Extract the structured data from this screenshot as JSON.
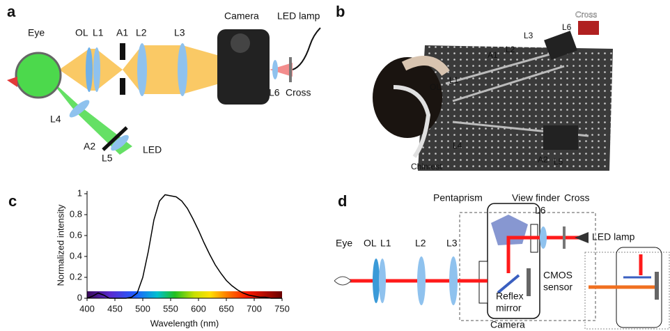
{
  "panel_a": {
    "label": "a",
    "eye": "Eye",
    "ol": "OL",
    "l1": "L1",
    "a1": "A1",
    "l2": "L2",
    "l3": "L3",
    "camera": "Camera",
    "led_lamp": "LED lamp",
    "l6": "L6",
    "cross": "Cross",
    "l4": "L4",
    "a2": "A2",
    "l5": "L5",
    "led": "LED"
  },
  "panel_b": {
    "label": "b",
    "cross": "Cross",
    "l3": "L3",
    "l6": "L6",
    "a1": "A1",
    "l2": "L2",
    "l1": "L1",
    "ol": "OL",
    "l4": "L4",
    "chinrest": "Chinrest",
    "a2": "A2",
    "l5": "L5"
  },
  "panel_c": {
    "label": "c"
  },
  "chart_data": {
    "type": "line",
    "ylabel": "Normalized intensity",
    "xlabel": "Wavelength (nm)",
    "x": [
      400,
      410,
      420,
      430,
      440,
      450,
      460,
      470,
      480,
      490,
      500,
      510,
      520,
      530,
      540,
      550,
      560,
      570,
      580,
      590,
      600,
      610,
      620,
      630,
      640,
      650,
      660,
      670,
      680,
      690,
      700,
      710,
      720,
      730,
      740,
      750
    ],
    "values": [
      0,
      0.02,
      0.05,
      0.03,
      0,
      0,
      0,
      0,
      0.01,
      0.05,
      0.2,
      0.45,
      0.75,
      0.93,
      0.99,
      0.98,
      0.97,
      0.93,
      0.86,
      0.76,
      0.65,
      0.53,
      0.42,
      0.32,
      0.24,
      0.17,
      0.12,
      0.08,
      0.05,
      0.03,
      0.02,
      0.01,
      0.01,
      0,
      0,
      0
    ],
    "color": "#000000",
    "xlim": [
      400,
      750
    ],
    "ylim": [
      0,
      1
    ],
    "xticks": [
      400,
      450,
      500,
      550,
      600,
      650,
      700,
      750
    ],
    "yticks": [
      0,
      0.2,
      0.4,
      0.6,
      0.8,
      1
    ]
  },
  "panel_d": {
    "label": "d",
    "pentaprism": "Pentaprism",
    "view_finder": "View finder",
    "cross": "Cross",
    "l6": "L6",
    "led_lamp": "LED lamp",
    "eye": "Eye",
    "ol": "OL",
    "l1": "L1",
    "l2": "L2",
    "l3": "L3",
    "cmos_sensor": [
      "CMOS",
      "sensor"
    ],
    "reflex_mirror": [
      "Reflex",
      "mirror"
    ],
    "camera": "Camera"
  }
}
